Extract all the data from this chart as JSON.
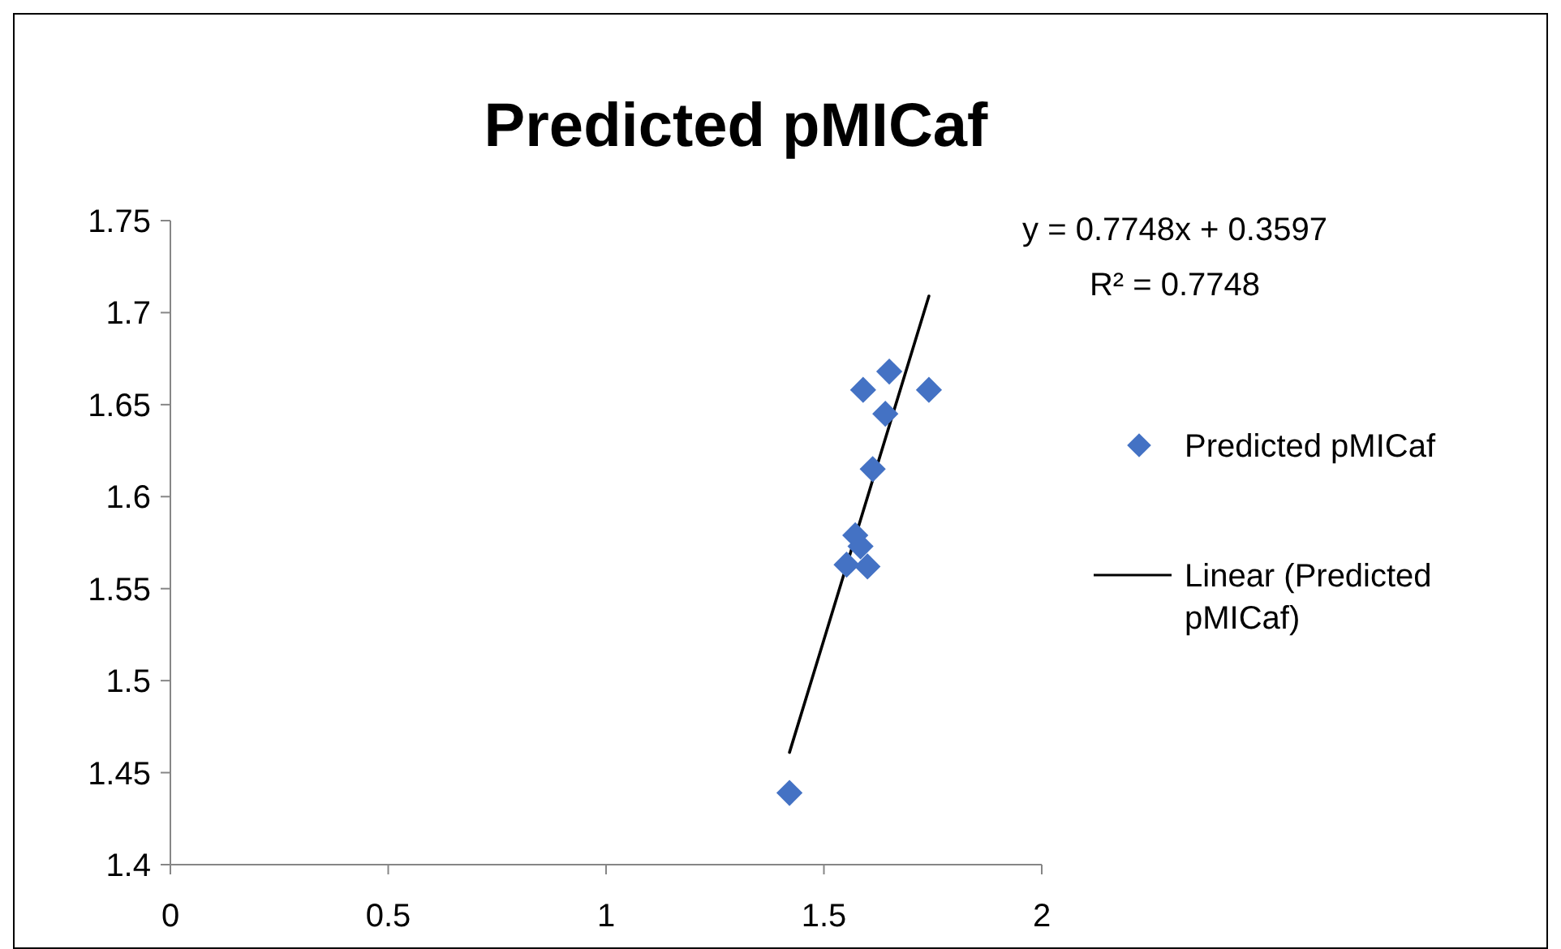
{
  "chart_data": {
    "type": "scatter",
    "title": "Predicted pMICaf",
    "xlim": [
      0,
      2
    ],
    "xticks": [
      0,
      0.5,
      1,
      1.5,
      2
    ],
    "ylim": [
      1.4,
      1.75
    ],
    "yticks": [
      1.4,
      1.45,
      1.5,
      1.55,
      1.6,
      1.65,
      1.7,
      1.75
    ],
    "grid": false,
    "legend": "right",
    "annotations": [
      "y = 0.7748x + 0.3597",
      "R² = 0.7748"
    ],
    "series": [
      {
        "name": "Predicted pMICaf",
        "marker": "diamond",
        "color": "#4472c4",
        "x": [
          1.65,
          1.59,
          1.741,
          1.641,
          1.612,
          1.572,
          1.584,
          1.552,
          1.6,
          1.421
        ],
        "values": [
          1.668,
          1.658,
          1.658,
          1.645,
          1.615,
          1.579,
          1.573,
          1.563,
          1.562,
          1.439
        ]
      },
      {
        "name": "Linear (Predicted pMICaf)",
        "type": "line",
        "color": "#000000",
        "line_style": "solid",
        "x": [
          1.421,
          1.741
        ],
        "values": [
          1.461,
          1.709
        ]
      }
    ]
  }
}
